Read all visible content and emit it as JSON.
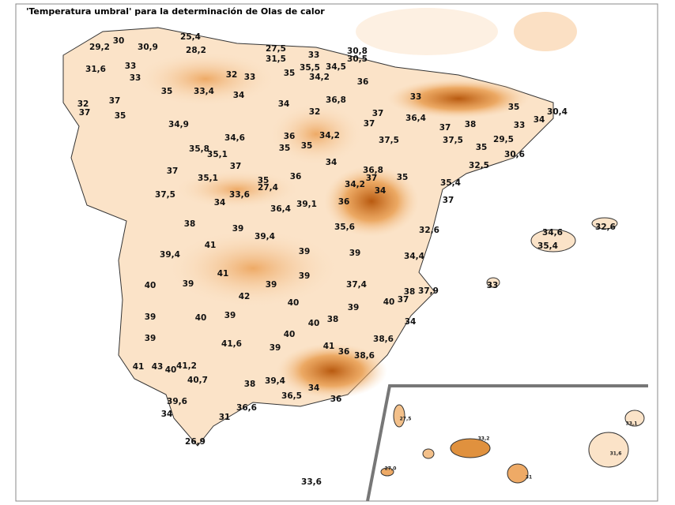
{
  "title": "'Temperatura umbral' para la determinación de Olas de calor",
  "labels": [
    "30",
    "29,2",
    "25,4",
    "28,2",
    "30,9",
    "27,5",
    "33",
    "30,8",
    "31,5",
    "30,5",
    "31,6",
    "33",
    "35,5",
    "34,5",
    "33",
    "32",
    "33",
    "35",
    "34,2",
    "36",
    "35",
    "33,4",
    "34",
    "33",
    "37",
    "36,8",
    "34",
    "32",
    "35",
    "37",
    "32",
    "37",
    "35",
    "36,4",
    "34",
    "30,4",
    "34,9",
    "34,6",
    "37",
    "33",
    "37",
    "38",
    "36",
    "34,2",
    "35",
    "35",
    "37,5",
    "37,5",
    "29,5",
    "35,8",
    "35,1",
    "35",
    "30,6",
    "32,5",
    "37",
    "34",
    "37",
    "35,1",
    "35",
    "36,8",
    "36",
    "35",
    "37",
    "27,4",
    "34,2",
    "35,4",
    "37,5",
    "33,6",
    "34",
    "37",
    "34",
    "39,1",
    "36",
    "36,4",
    "38",
    "35,6",
    "39",
    "32,6",
    "34,6",
    "32,6",
    "39,4",
    "41",
    "35,4",
    "39,4",
    "39",
    "39",
    "34,4",
    "41",
    "39",
    "33",
    "40",
    "39",
    "39",
    "37,4",
    "38",
    "37,9",
    "42",
    "40",
    "37",
    "40",
    "39",
    "39",
    "40",
    "39",
    "40",
    "38",
    "34",
    "40",
    "39",
    "41,6",
    "38,6",
    "41",
    "39",
    "36",
    "38,6",
    "41",
    "43",
    "41,2",
    "40",
    "40,7",
    "38",
    "39,4",
    "34",
    "36,5",
    "36",
    "39,6",
    "36,6",
    "34",
    "31",
    "26,9",
    "33,6"
  ],
  "canary_labels": [
    "27,5",
    "33,2",
    "33,1",
    "27,0",
    "31",
    "31,6"
  ]
}
